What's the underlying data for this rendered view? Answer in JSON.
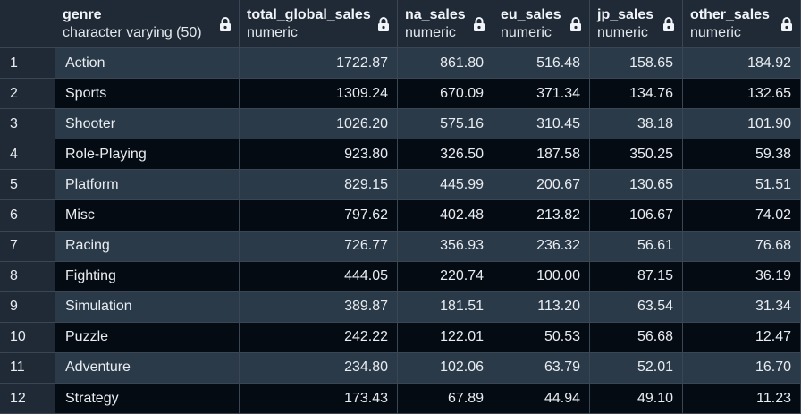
{
  "columns": [
    {
      "name": "genre",
      "type": "character varying (50)"
    },
    {
      "name": "total_global_sales",
      "type": "numeric"
    },
    {
      "name": "na_sales",
      "type": "numeric"
    },
    {
      "name": "eu_sales",
      "type": "numeric"
    },
    {
      "name": "jp_sales",
      "type": "numeric"
    },
    {
      "name": "other_sales",
      "type": "numeric"
    }
  ],
  "rows": [
    {
      "num": "1",
      "genre": "Action",
      "total_global_sales": "1722.87",
      "na_sales": "861.80",
      "eu_sales": "516.48",
      "jp_sales": "158.65",
      "other_sales": "184.92"
    },
    {
      "num": "2",
      "genre": "Sports",
      "total_global_sales": "1309.24",
      "na_sales": "670.09",
      "eu_sales": "371.34",
      "jp_sales": "134.76",
      "other_sales": "132.65"
    },
    {
      "num": "3",
      "genre": "Shooter",
      "total_global_sales": "1026.20",
      "na_sales": "575.16",
      "eu_sales": "310.45",
      "jp_sales": "38.18",
      "other_sales": "101.90"
    },
    {
      "num": "4",
      "genre": "Role-Playing",
      "total_global_sales": "923.80",
      "na_sales": "326.50",
      "eu_sales": "187.58",
      "jp_sales": "350.25",
      "other_sales": "59.38"
    },
    {
      "num": "5",
      "genre": "Platform",
      "total_global_sales": "829.15",
      "na_sales": "445.99",
      "eu_sales": "200.67",
      "jp_sales": "130.65",
      "other_sales": "51.51"
    },
    {
      "num": "6",
      "genre": "Misc",
      "total_global_sales": "797.62",
      "na_sales": "402.48",
      "eu_sales": "213.82",
      "jp_sales": "106.67",
      "other_sales": "74.02"
    },
    {
      "num": "7",
      "genre": "Racing",
      "total_global_sales": "726.77",
      "na_sales": "356.93",
      "eu_sales": "236.32",
      "jp_sales": "56.61",
      "other_sales": "76.68"
    },
    {
      "num": "8",
      "genre": "Fighting",
      "total_global_sales": "444.05",
      "na_sales": "220.74",
      "eu_sales": "100.00",
      "jp_sales": "87.15",
      "other_sales": "36.19"
    },
    {
      "num": "9",
      "genre": "Simulation",
      "total_global_sales": "389.87",
      "na_sales": "181.51",
      "eu_sales": "113.20",
      "jp_sales": "63.54",
      "other_sales": "31.34"
    },
    {
      "num": "10",
      "genre": "Puzzle",
      "total_global_sales": "242.22",
      "na_sales": "122.01",
      "eu_sales": "50.53",
      "jp_sales": "56.68",
      "other_sales": "12.47"
    },
    {
      "num": "11",
      "genre": "Adventure",
      "total_global_sales": "234.80",
      "na_sales": "102.06",
      "eu_sales": "63.79",
      "jp_sales": "52.01",
      "other_sales": "16.70"
    },
    {
      "num": "12",
      "genre": "Strategy",
      "total_global_sales": "173.43",
      "na_sales": "67.89",
      "eu_sales": "44.94",
      "jp_sales": "49.10",
      "other_sales": "11.23"
    }
  ],
  "icons": {
    "column_lock": "lock-icon"
  },
  "colors": {
    "header_bg": "#1f2a36",
    "odd_row_bg": "#2b3a49",
    "even_row_bg": "#050b12",
    "grid_line": "#3b4654",
    "text": "#e9edf2"
  }
}
